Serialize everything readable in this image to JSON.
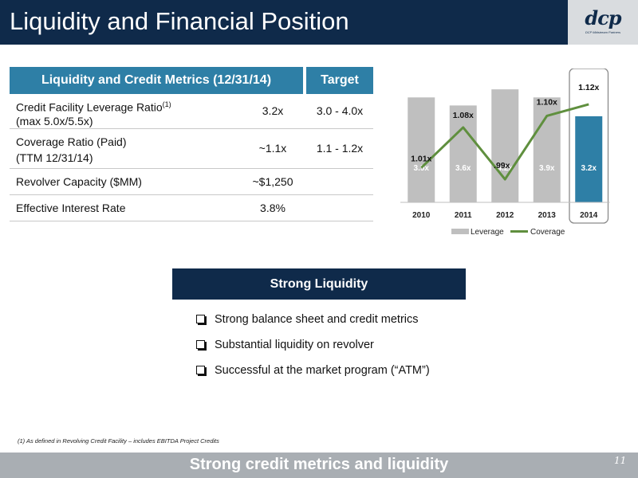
{
  "header": {
    "title": "Liquidity and Financial Position",
    "logo_text": "dcp",
    "logo_tagline": "DCP Midstream Partners",
    "bg_color": "#0f2a4a"
  },
  "metrics_table": {
    "header_label": "Liquidity and Credit Metrics (12/31/14)",
    "header_target": "Target",
    "header_color": "#2e7fa6",
    "rows": [
      {
        "label_line1": "Credit Facility Leverage Ratio",
        "label_sup": "(1)",
        "label_line2": "(max 5.0x/5.5x)",
        "value": "3.2x",
        "target": "3.0 - 4.0x"
      },
      {
        "label_line1": "Coverage Ratio (Paid)",
        "label_line2": "(TTM 12/31/14)",
        "value": "~1.1x",
        "target": "1.1 - 1.2x"
      },
      {
        "label_line1": "Revolver Capacity ($MM)",
        "value": "~$1,250",
        "target": ""
      },
      {
        "label_line1": "Effective Interest Rate",
        "value": "3.8%",
        "target": ""
      }
    ]
  },
  "chart_data": {
    "type": "bar",
    "categories": [
      "2010",
      "2011",
      "2012",
      "2013",
      "2014"
    ],
    "series": [
      {
        "name": "Leverage",
        "kind": "bar",
        "values": [
          3.9,
          3.6,
          4.2,
          3.9,
          3.2
        ],
        "labels": [
          "3.9x",
          "3.6x",
          "4.2x",
          "3.9x",
          "3.2x"
        ],
        "color": "#bfbfbf",
        "highlight_color": "#2e7fa6"
      },
      {
        "name": "Coverage",
        "kind": "line",
        "values": [
          1.01,
          1.08,
          0.99,
          1.1,
          1.12
        ],
        "labels": [
          "1.01x",
          "1.08x",
          ".99x",
          "1.10x",
          "1.12x"
        ],
        "color": "#5f8f3e"
      }
    ],
    "leverage_ylim": [
      0,
      4.5
    ],
    "coverage_ylim": [
      0.95,
      1.16
    ],
    "highlighted_category": "2014",
    "legend_position": "bottom",
    "grid": false
  },
  "liquidity": {
    "title": "Strong Liquidity",
    "bullets": [
      "Strong balance sheet and credit metrics",
      "Substantial liquidity on revolver",
      "Successful at the market program (“ATM”)"
    ]
  },
  "footnote": "(1) As defined in Revolving Credit Facility – includes EBITDA Project Credits",
  "footer": {
    "text": "Strong credit metrics and liquidity",
    "page_number": "11"
  }
}
